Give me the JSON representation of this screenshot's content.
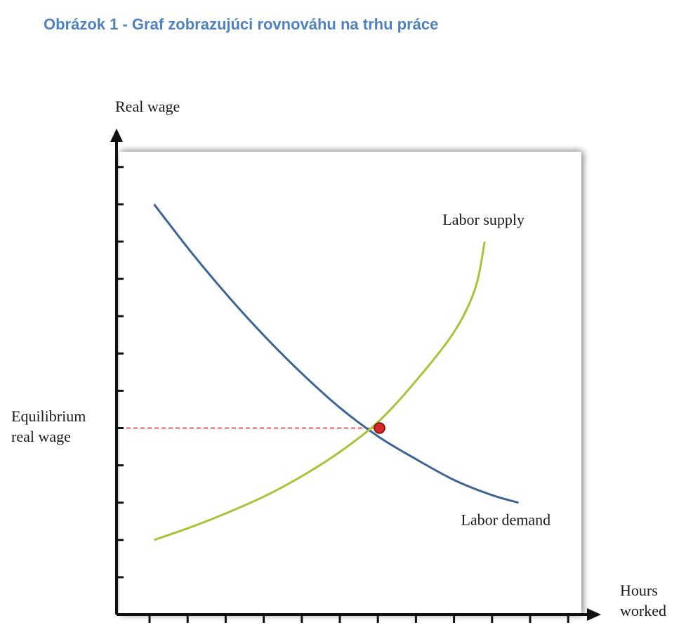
{
  "caption": "Obrázok 1 - Graf zobrazujúci rovnováhu na trhu práce",
  "chart_data": {
    "type": "line",
    "title": "",
    "xlabel": "Hours worked",
    "ylabel": "Real wage",
    "xlim": [
      0,
      13
    ],
    "ylim": [
      0,
      12
    ],
    "x_ticks": 12,
    "y_ticks": 12,
    "grid": false,
    "series": [
      {
        "name": "Labor demand",
        "color": "#3e6494",
        "points": [
          [
            1.0,
            11.0
          ],
          [
            2.0,
            9.7
          ],
          [
            3.0,
            8.5
          ],
          [
            4.0,
            7.4
          ],
          [
            5.0,
            6.4
          ],
          [
            6.0,
            5.5
          ],
          [
            7.0,
            4.75
          ],
          [
            8.0,
            4.15
          ],
          [
            9.0,
            3.6
          ],
          [
            10.0,
            3.2
          ],
          [
            10.7,
            3.0
          ]
        ]
      },
      {
        "name": "Labor supply",
        "color": "#a8c23a",
        "points": [
          [
            1.0,
            2.0
          ],
          [
            2.0,
            2.35
          ],
          [
            3.0,
            2.75
          ],
          [
            4.0,
            3.2
          ],
          [
            5.0,
            3.75
          ],
          [
            6.0,
            4.4
          ],
          [
            7.0,
            5.2
          ],
          [
            8.0,
            6.3
          ],
          [
            9.0,
            7.6
          ],
          [
            9.55,
            8.75
          ],
          [
            9.8,
            10.0
          ]
        ]
      }
    ],
    "equilibrium": {
      "label": "Equilibrium real wage",
      "x": 7.0,
      "y": 5.0,
      "marker_color": "#d62728",
      "line_color": "#d62728"
    }
  }
}
